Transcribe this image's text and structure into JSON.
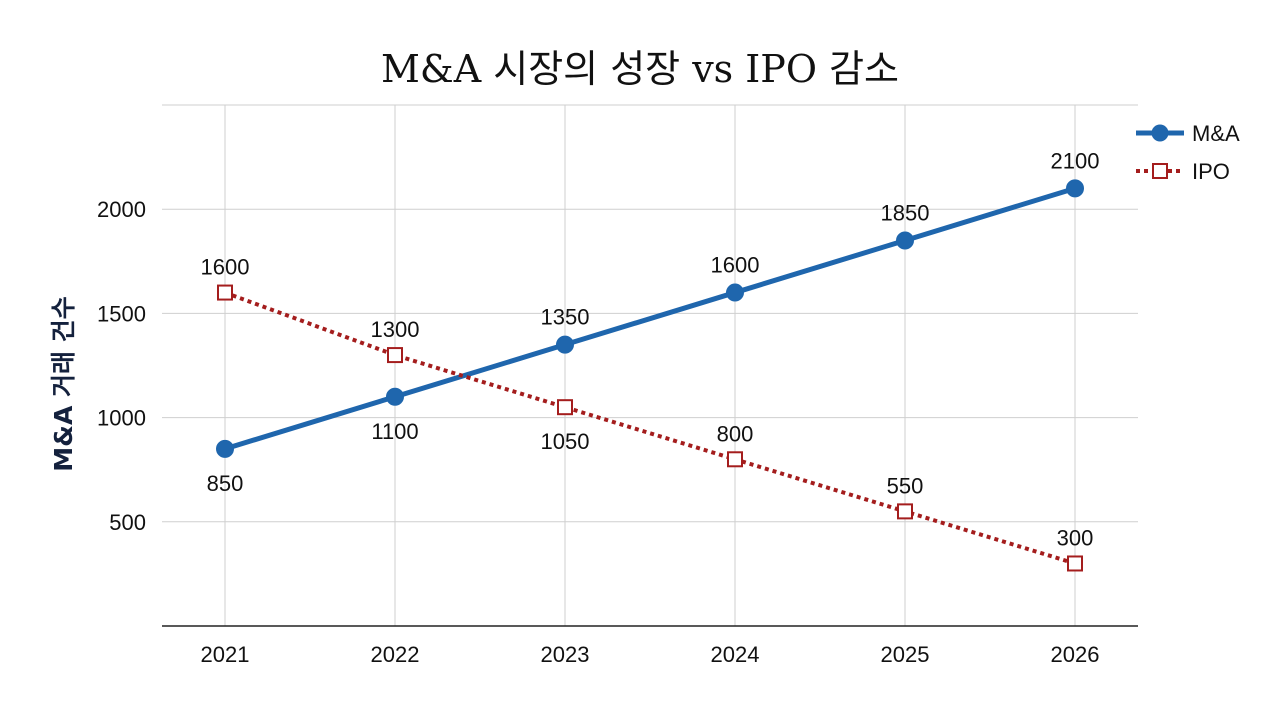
{
  "chart_data": {
    "type": "line",
    "title": "M&A 시장의 성장 vs IPO 감소",
    "xlabel": "",
    "ylabel": "M&A 거래 건수",
    "x": [
      "2021",
      "2022",
      "2023",
      "2024",
      "2025",
      "2026"
    ],
    "yticks": [
      500,
      1000,
      1500,
      2000
    ],
    "ylim": [
      0,
      2500
    ],
    "grid": true,
    "legend_position": "top-right",
    "series": [
      {
        "name": "M&A",
        "values": [
          850,
          1100,
          1350,
          1600,
          1850,
          2100
        ],
        "labels": [
          "850",
          "1100",
          "1350",
          "1600",
          "1850",
          "2100"
        ],
        "color": "#1f66ad",
        "style": "solid",
        "marker": "circle"
      },
      {
        "name": "IPO",
        "values": [
          1600,
          1300,
          1050,
          800,
          550,
          300
        ],
        "labels": [
          "1600",
          "1300",
          "1050",
          "800",
          "550",
          "300"
        ],
        "color": "#a41d1d",
        "style": "dotted",
        "marker": "square-open"
      }
    ]
  }
}
